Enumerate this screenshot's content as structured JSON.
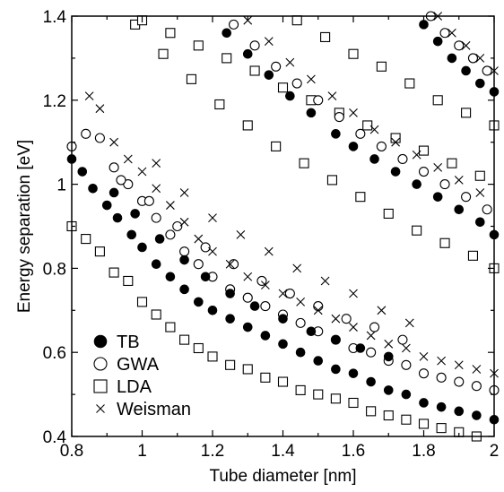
{
  "chart_data": {
    "type": "scatter",
    "title": "",
    "xlabel": "Tube diameter [nm]",
    "ylabel": "Energy separation [eV]",
    "xlim": [
      0.8,
      2.0
    ],
    "ylim": [
      0.4,
      1.4
    ],
    "xticks": [
      "0.8",
      "1",
      "1.2",
      "1.4",
      "1.6",
      "1.8",
      "2"
    ],
    "yticks": [
      "0.4",
      "0.6",
      "0.8",
      "1",
      "1.2",
      "1.4"
    ],
    "legend_position": "lower-left",
    "grid": false,
    "series": [
      {
        "name": "TB",
        "marker": "filled-circle",
        "x": [
          0.8,
          0.83,
          0.86,
          0.9,
          0.93,
          0.97,
          1.0,
          1.04,
          1.08,
          1.12,
          1.16,
          1.2,
          1.25,
          1.3,
          1.35,
          1.4,
          1.45,
          1.5,
          1.55,
          1.6,
          1.65,
          1.7,
          1.75,
          1.8,
          1.85,
          1.9,
          1.95,
          2.0,
          0.92,
          0.98,
          1.05,
          1.12,
          1.18,
          1.25,
          1.32,
          1.4,
          1.48,
          1.55,
          1.62,
          1.7,
          1.24,
          1.3,
          1.36,
          1.42,
          1.48,
          1.55,
          1.6,
          1.66,
          1.72,
          1.78,
          1.84,
          1.9,
          1.96,
          2.0,
          1.8,
          1.84,
          1.88,
          1.92,
          1.96,
          2.0
        ],
        "y": [
          1.06,
          1.03,
          0.99,
          0.95,
          0.92,
          0.88,
          0.85,
          0.81,
          0.78,
          0.75,
          0.72,
          0.7,
          0.68,
          0.66,
          0.64,
          0.62,
          0.6,
          0.58,
          0.56,
          0.55,
          0.53,
          0.51,
          0.5,
          0.48,
          0.47,
          0.46,
          0.45,
          0.44,
          0.98,
          0.93,
          0.87,
          0.82,
          0.78,
          0.74,
          0.71,
          0.68,
          0.65,
          0.63,
          0.61,
          0.59,
          1.36,
          1.31,
          1.26,
          1.21,
          1.17,
          1.12,
          1.09,
          1.06,
          1.03,
          1.0,
          0.97,
          0.94,
          0.91,
          0.88,
          1.38,
          1.34,
          1.3,
          1.27,
          1.24,
          1.22
        ]
      },
      {
        "name": "GWA",
        "marker": "open-circle",
        "x": [
          0.8,
          0.84,
          0.88,
          0.92,
          0.96,
          1.0,
          1.04,
          1.08,
          1.12,
          1.16,
          1.2,
          1.25,
          1.3,
          1.35,
          1.4,
          1.45,
          1.5,
          1.55,
          1.6,
          1.65,
          1.7,
          1.75,
          1.8,
          1.85,
          1.9,
          1.95,
          2.0,
          0.94,
          1.02,
          1.1,
          1.18,
          1.26,
          1.34,
          1.42,
          1.5,
          1.58,
          1.66,
          1.74,
          1.26,
          1.32,
          1.38,
          1.44,
          1.5,
          1.56,
          1.62,
          1.68,
          1.74,
          1.8,
          1.86,
          1.92,
          1.98,
          1.82,
          1.86,
          1.9,
          1.94,
          1.98
        ],
        "y": [
          1.09,
          1.12,
          1.11,
          1.04,
          1.0,
          0.96,
          0.92,
          0.88,
          0.84,
          0.81,
          0.78,
          0.75,
          0.73,
          0.71,
          0.69,
          0.67,
          0.65,
          0.63,
          0.61,
          0.6,
          0.58,
          0.57,
          0.55,
          0.54,
          0.53,
          0.52,
          0.51,
          1.01,
          0.96,
          0.9,
          0.85,
          0.81,
          0.77,
          0.74,
          0.71,
          0.68,
          0.66,
          0.63,
          1.38,
          1.33,
          1.28,
          1.24,
          1.2,
          1.16,
          1.12,
          1.09,
          1.06,
          1.03,
          1.0,
          0.97,
          0.94,
          1.4,
          1.36,
          1.33,
          1.3,
          1.27
        ]
      },
      {
        "name": "LDA",
        "marker": "open-square",
        "x": [
          0.8,
          0.84,
          0.88,
          0.92,
          0.96,
          1.0,
          1.04,
          1.08,
          1.12,
          1.16,
          1.2,
          1.25,
          1.3,
          1.35,
          1.4,
          1.45,
          1.5,
          1.55,
          1.6,
          1.65,
          1.7,
          1.75,
          1.8,
          1.85,
          1.9,
          1.95,
          0.98,
          1.06,
          1.14,
          1.22,
          1.3,
          1.38,
          1.46,
          1.54,
          1.62,
          1.7,
          1.78,
          1.86,
          1.94,
          2.0,
          1.0,
          1.08,
          1.16,
          1.24,
          1.32,
          1.4,
          1.48,
          1.56,
          1.64,
          1.72,
          1.8,
          1.88,
          1.96,
          1.44,
          1.52,
          1.6,
          1.68,
          1.76,
          1.84,
          1.92,
          2.0
        ],
        "y": [
          0.9,
          0.87,
          0.84,
          0.79,
          0.77,
          0.72,
          0.69,
          0.66,
          0.63,
          0.61,
          0.59,
          0.57,
          0.56,
          0.54,
          0.53,
          0.51,
          0.5,
          0.49,
          0.48,
          0.46,
          0.45,
          0.44,
          0.43,
          0.42,
          0.41,
          0.4,
          1.38,
          1.31,
          1.25,
          1.19,
          1.14,
          1.09,
          1.05,
          1.01,
          0.97,
          0.93,
          0.89,
          0.86,
          0.83,
          0.8,
          1.39,
          1.36,
          1.33,
          1.3,
          1.27,
          1.23,
          1.2,
          1.17,
          1.14,
          1.11,
          1.08,
          1.05,
          1.02,
          1.39,
          1.35,
          1.31,
          1.28,
          1.24,
          1.2,
          1.17,
          1.14
        ]
      },
      {
        "name": "Weisman",
        "marker": "cross",
        "x": [
          0.85,
          0.88,
          0.92,
          0.96,
          1.0,
          1.04,
          1.08,
          1.12,
          1.16,
          1.2,
          1.25,
          1.3,
          1.35,
          1.4,
          1.45,
          1.5,
          1.55,
          1.6,
          1.65,
          1.7,
          1.75,
          1.8,
          1.85,
          1.9,
          1.95,
          2.0,
          1.04,
          1.12,
          1.2,
          1.28,
          1.36,
          1.44,
          1.52,
          1.6,
          1.68,
          1.76,
          1.3,
          1.36,
          1.42,
          1.48,
          1.54,
          1.6,
          1.66,
          1.72,
          1.78,
          1.84,
          1.9,
          1.96,
          1.84,
          1.88,
          1.92,
          1.96,
          2.0
        ],
        "y": [
          1.21,
          1.18,
          1.1,
          1.06,
          1.03,
          0.99,
          0.95,
          0.91,
          0.87,
          0.84,
          0.81,
          0.78,
          0.76,
          0.74,
          0.72,
          0.7,
          0.68,
          0.66,
          0.64,
          0.62,
          0.61,
          0.59,
          0.58,
          0.57,
          0.56,
          0.55,
          1.05,
          0.98,
          0.92,
          0.88,
          0.84,
          0.8,
          0.77,
          0.74,
          0.7,
          0.67,
          1.39,
          1.34,
          1.29,
          1.25,
          1.21,
          1.17,
          1.13,
          1.1,
          1.07,
          1.04,
          1.01,
          0.98,
          1.4,
          1.36,
          1.33,
          1.3,
          1.27
        ]
      }
    ]
  }
}
